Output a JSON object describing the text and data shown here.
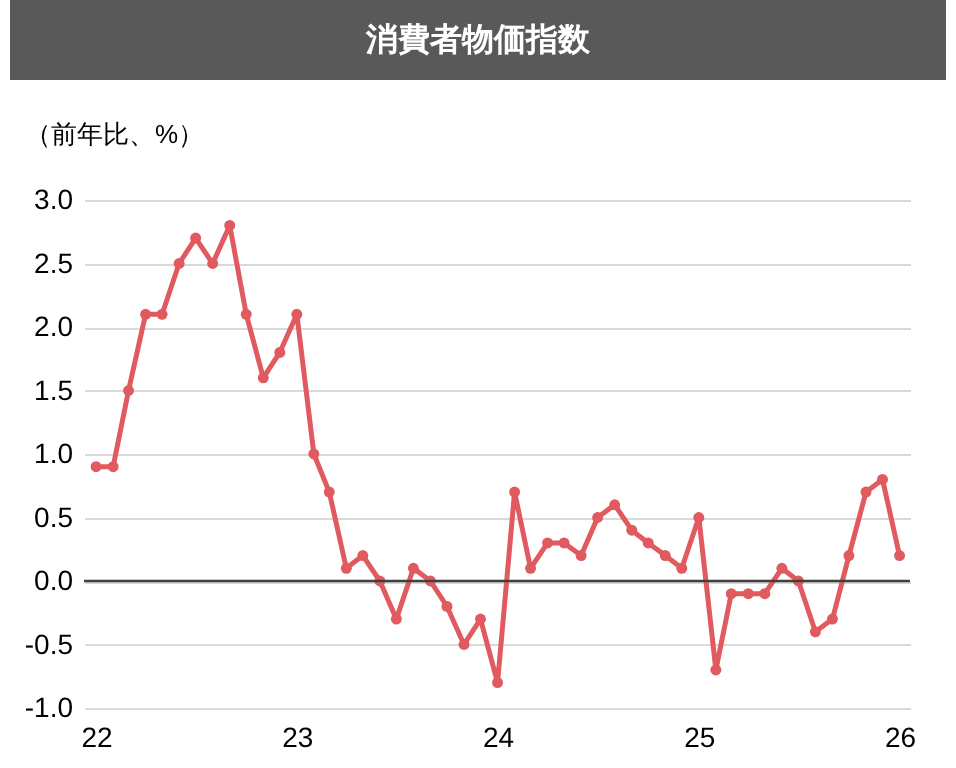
{
  "chart_data": {
    "type": "line",
    "title": "消費者物価指数",
    "ylabel": "（前年比、%）",
    "x": [
      "2022-01",
      "2022-02",
      "2022-03",
      "2022-04",
      "2022-05",
      "2022-06",
      "2022-07",
      "2022-08",
      "2022-09",
      "2022-10",
      "2022-11",
      "2022-12",
      "2023-01",
      "2023-02",
      "2023-03",
      "2023-04",
      "2023-05",
      "2023-06",
      "2023-07",
      "2023-08",
      "2023-09",
      "2023-10",
      "2023-11",
      "2023-12",
      "2024-01",
      "2024-02",
      "2024-03",
      "2024-04",
      "2024-05",
      "2024-06",
      "2024-07",
      "2024-08",
      "2024-09",
      "2024-10",
      "2024-11",
      "2024-12",
      "2025-01",
      "2025-02",
      "2025-03",
      "2025-04",
      "2025-05",
      "2025-06",
      "2025-07",
      "2025-08",
      "2025-09",
      "2025-10",
      "2025-11",
      "2025-12",
      "2026-01"
    ],
    "series": [
      {
        "color": "#e05a5f",
        "values": [
          0.9,
          0.9,
          1.5,
          2.1,
          2.1,
          2.5,
          2.7,
          2.5,
          2.8,
          2.1,
          1.6,
          1.8,
          2.1,
          1.0,
          0.7,
          0.1,
          0.2,
          0.0,
          -0.3,
          0.1,
          0.0,
          -0.2,
          -0.5,
          -0.3,
          -0.8,
          0.7,
          0.1,
          0.3,
          0.3,
          0.2,
          0.5,
          0.6,
          0.4,
          0.3,
          0.2,
          0.1,
          0.5,
          -0.7,
          -0.1,
          -0.1,
          -0.1,
          0.1,
          0.0,
          -0.4,
          -0.3,
          0.2,
          0.7,
          0.8,
          0.2
        ]
      }
    ],
    "xlim": [
      "2021-12-10",
      "2026-01-20"
    ],
    "xticks": [
      {
        "value": "2022-01",
        "label": "22"
      },
      {
        "value": "2023-01",
        "label": "23"
      },
      {
        "value": "2024-01",
        "label": "24"
      },
      {
        "value": "2025-01",
        "label": "25"
      },
      {
        "value": "2026-01",
        "label": "26"
      }
    ],
    "ylim": [
      -1.0,
      3.0
    ],
    "yticks": [
      {
        "value": -1.0,
        "label": "-1.0"
      },
      {
        "value": -0.5,
        "label": "-0.5"
      },
      {
        "value": 0.0,
        "label": "0.0"
      },
      {
        "value": 0.5,
        "label": "0.5"
      },
      {
        "value": 1.0,
        "label": "1.0"
      },
      {
        "value": 1.5,
        "label": "1.5"
      },
      {
        "value": 2.0,
        "label": "2.0"
      },
      {
        "value": 2.5,
        "label": "2.5"
      },
      {
        "value": 3.0,
        "label": "3.0"
      }
    ],
    "ref_lines": [
      {
        "axis": "y",
        "value": 0,
        "color": "#404040"
      }
    ],
    "grid": "y",
    "marker": "circle",
    "line_style": "solid"
  }
}
